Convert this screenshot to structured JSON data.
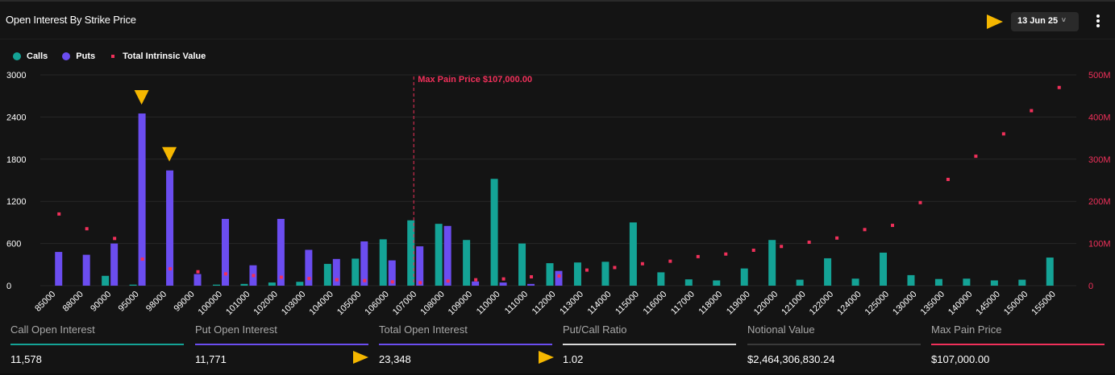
{
  "header": {
    "title": "Open Interest By Strike Price",
    "date_label": "13 Jun 25",
    "date_caret": "˅"
  },
  "legend": {
    "calls": "Calls",
    "puts": "Puts",
    "intrinsic": "Total Intrinsic Value"
  },
  "colors": {
    "calls": "#14a396",
    "puts": "#6b4df0",
    "intrinsic": "#f0305a",
    "highlight": "#f5b700",
    "grid": "#262626",
    "axis_text": "#ffffff"
  },
  "chart_data": {
    "type": "bar",
    "title": "Open Interest By Strike Price",
    "categories": [
      "85000",
      "88000",
      "90000",
      "95000",
      "98000",
      "99000",
      "100000",
      "101000",
      "102000",
      "103000",
      "104000",
      "105000",
      "106000",
      "107000",
      "108000",
      "109000",
      "110000",
      "111000",
      "112000",
      "113000",
      "114000",
      "115000",
      "116000",
      "117000",
      "118000",
      "119000",
      "120000",
      "121000",
      "122000",
      "124000",
      "125000",
      "130000",
      "135000",
      "140000",
      "145000",
      "150000",
      "155000"
    ],
    "series": [
      {
        "name": "Calls",
        "axis": "left",
        "values": [
          0,
          0,
          140,
          15,
          0,
          0,
          15,
          25,
          45,
          55,
          310,
          385,
          660,
          930,
          880,
          650,
          1520,
          600,
          320,
          330,
          340,
          900,
          190,
          90,
          75,
          245,
          650,
          85,
          390,
          100,
          470,
          150,
          95,
          100,
          75,
          85,
          400
        ]
      },
      {
        "name": "Puts",
        "axis": "left",
        "values": [
          480,
          440,
          600,
          2450,
          1640,
          165,
          950,
          290,
          950,
          510,
          380,
          630,
          360,
          560,
          850,
          60,
          45,
          25,
          210,
          0,
          0,
          0,
          0,
          0,
          0,
          0,
          0,
          0,
          0,
          0,
          0,
          0,
          0,
          0,
          0,
          0,
          0
        ]
      },
      {
        "name": "Total Intrinsic Value",
        "axis": "right",
        "type": "scatter",
        "values": [
          170,
          135,
          112,
          63,
          40,
          33,
          28,
          24,
          20,
          17,
          14,
          12,
          9,
          7,
          11,
          14,
          16,
          21,
          23,
          37,
          43,
          52,
          58,
          69,
          75,
          84,
          93,
          103,
          113,
          133,
          143,
          197,
          252,
          307,
          360,
          415,
          470
        ]
      }
    ],
    "ylim_left": [
      0,
      3000
    ],
    "yticks_left": [
      "0",
      "600",
      "1200",
      "1800",
      "2400",
      "3000"
    ],
    "ylim_right": [
      0,
      500
    ],
    "yticks_right": [
      "0",
      "100M",
      "200M",
      "300M",
      "400M",
      "500M"
    ],
    "grid": true,
    "legend_position": "top-left",
    "annotation": {
      "category": "107000",
      "label": "Max Pain Price $107,000.00"
    },
    "highlighted_categories": [
      "95000",
      "98000"
    ]
  },
  "stats": [
    {
      "label": "Call Open Interest",
      "value": "11,578",
      "color": "#14a396"
    },
    {
      "label": "Put Open Interest",
      "value": "11,771",
      "color": "#6b4df0"
    },
    {
      "label": "Total Open Interest",
      "value": "23,348",
      "color": "#6b4df0"
    },
    {
      "label": "Put/Call Ratio",
      "value": "1.02",
      "color": "#d9d9d9"
    },
    {
      "label": "Notional Value",
      "value": "$2,464,306,830.24",
      "color": "#3a3a3a"
    },
    {
      "label": "Max Pain Price",
      "value": "$107,000.00",
      "color": "#f0305a"
    }
  ]
}
